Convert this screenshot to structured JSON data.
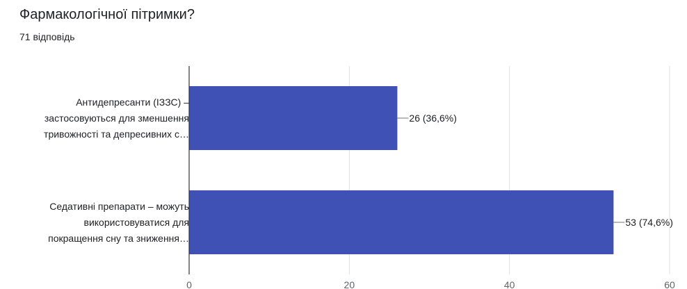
{
  "header": {
    "title": "Фармакологічної пітримки?",
    "response_count": "71 відповідь"
  },
  "chart_data": {
    "type": "bar",
    "orientation": "horizontal",
    "categories": [
      [
        "Антидепресанти (ІЗЗС) –",
        "застосовуються для зменшення",
        "тривожності та депресивних с…"
      ],
      [
        "Седативні препарати – можуть",
        "використовуватися для",
        "покращення сну та зниження…"
      ]
    ],
    "values": [
      26,
      53
    ],
    "data_labels": [
      "26 (36,6%)",
      "53 (74,6%)"
    ],
    "xlim": [
      0,
      60
    ],
    "xticks": [
      0,
      20,
      40,
      60
    ],
    "grid": true,
    "bar_color": "#3f51b5"
  }
}
